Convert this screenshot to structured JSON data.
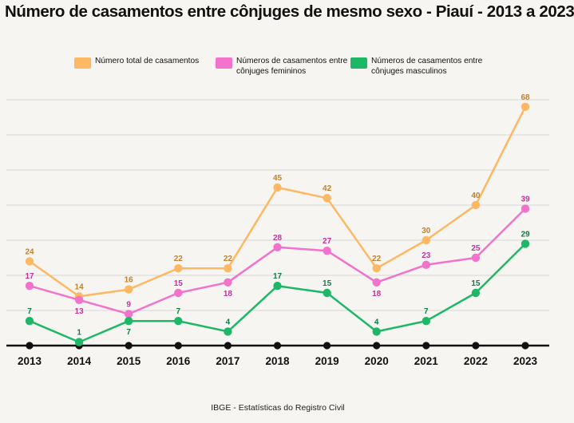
{
  "title": "Número de casamentos entre cônjuges de mesmo sexo - Piauí - 2013 a 2023",
  "source": "IBGE - Estatísticas do Registro Civil",
  "legend": [
    {
      "label": "Número total de casamentos",
      "color": "#fdb863"
    },
    {
      "label": "Números de casamentos entre cônjuges femininos",
      "color": "#f272cc"
    },
    {
      "label": "Números de casamentos entre cônjuges masculinos",
      "color": "#1db866"
    }
  ],
  "chart_data": {
    "type": "line",
    "title": "Número de casamentos entre cônjuges de mesmo sexo - Piauí - 2013 a 2023",
    "categories": [
      "2013",
      "2014",
      "2015",
      "2016",
      "2017",
      "2018",
      "2019",
      "2020",
      "2021",
      "2022",
      "2023"
    ],
    "ylim": [
      0,
      70
    ],
    "grid": true,
    "legend_position": "top",
    "series": [
      {
        "name": "Número total de casamentos",
        "color": "#fdb863",
        "label_color": "#c0812f",
        "values": [
          24,
          14,
          16,
          22,
          22,
          45,
          42,
          22,
          30,
          40,
          68
        ],
        "label_pos": [
          "above",
          "above",
          "above",
          "above",
          "above",
          "above",
          "above",
          "above",
          "above",
          "above",
          "above"
        ]
      },
      {
        "name": "Números de casamentos entre cônjuges femininos",
        "color": "#f272cc",
        "label_color": "#c2339c",
        "values": [
          17,
          13,
          9,
          15,
          18,
          28,
          27,
          18,
          23,
          25,
          39
        ],
        "label_pos": [
          "above",
          "below",
          "above",
          "above",
          "below",
          "above",
          "above",
          "below",
          "above",
          "above",
          "above"
        ]
      },
      {
        "name": "Números de casamentos entre cônjuges masculinos",
        "color": "#1db866",
        "label_color": "#157a45",
        "values": [
          7,
          1,
          7,
          7,
          4,
          17,
          15,
          4,
          7,
          15,
          29
        ],
        "label_pos": [
          "above",
          "above",
          "below",
          "above",
          "above",
          "above",
          "above",
          "above",
          "above",
          "above",
          "above"
        ]
      }
    ]
  }
}
